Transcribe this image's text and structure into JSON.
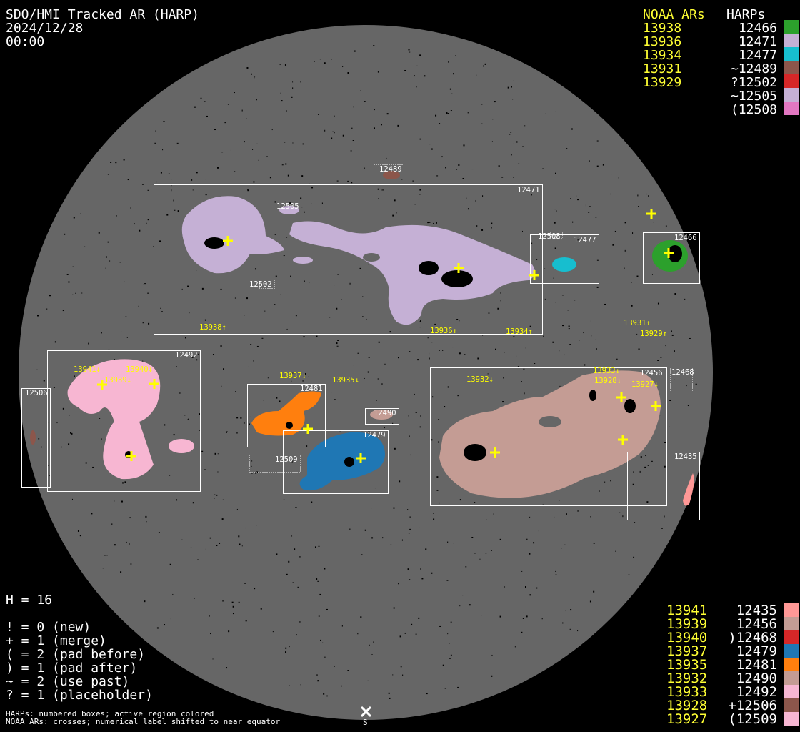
{
  "header": {
    "title": "SDO/HMI Tracked AR (HARP)",
    "date": "2024/12/28",
    "time": "00:00"
  },
  "top_legend": {
    "noaa_header": "NOAA ARs",
    "harp_header": "HARPs",
    "noaa": [
      "13938",
      "13936",
      "13934",
      "13931",
      "13929"
    ],
    "harps": [
      {
        "label": "12466",
        "color": "#2ca02c"
      },
      {
        "label": "12471",
        "color": "#c5b0d5"
      },
      {
        "label": "12477",
        "color": "#17becf"
      },
      {
        "label": "~12489",
        "color": "#8c564b"
      },
      {
        "label": "?12502",
        "color": "#d62728"
      },
      {
        "label": "~12505",
        "color": "#c5b0d5"
      },
      {
        "label": "(12508",
        "color": "#e377c2"
      }
    ]
  },
  "bottom_legend": {
    "noaa": [
      "13941",
      "13939",
      "13940",
      "13937",
      "13935",
      "13932",
      "13933",
      "13928",
      "13927"
    ],
    "harps": [
      {
        "label": "12435",
        "color": "#ff9896"
      },
      {
        "label": "12456",
        "color": "#c49c94"
      },
      {
        "label": ")12468",
        "color": "#d62728"
      },
      {
        "label": "12479",
        "color": "#1f77b4"
      },
      {
        "label": "12481",
        "color": "#ff7f0e"
      },
      {
        "label": "12490",
        "color": "#c49c94"
      },
      {
        "label": "12492",
        "color": "#f7b6d2"
      },
      {
        "label": "+12506",
        "color": "#8c564b"
      },
      {
        "label": "(12509",
        "color": "#f7b6d2"
      }
    ]
  },
  "stats": {
    "h_count": "H = 16",
    "codes": [
      "! = 0 (new)",
      "+ = 1 (merge)",
      "( = 2 (pad before)",
      ") = 1 (pad after)",
      "~ = 2 (use past)",
      "? = 1 (placeholder)"
    ]
  },
  "footer": {
    "line1": "HARPs: numbered boxes; active region colored",
    "line2": "NOAA ARs: crosses; numerical label shifted to near equator",
    "south_marker": "S"
  },
  "disk": {
    "color": "#666666"
  },
  "harp_boxes": {
    "b12471": "12471",
    "b12505": "12505",
    "b12489": "12489",
    "b12502": "12502",
    "b12508": "12508",
    "b12477": "12477",
    "b12466": "12466",
    "b12492": "12492",
    "b12506": "12506",
    "b12481": "12481",
    "b12479": "12479",
    "b12509": "12509",
    "b12490": "12490",
    "b12456": "12456",
    "b12468": "12468",
    "b12435": "12435"
  },
  "noaa_labels": {
    "n13938": "13938↑",
    "n13936": "13936↑",
    "n13934": "13934↑",
    "n13931": "13931↑",
    "n13929": "13929↑",
    "n13941": "13941↓",
    "n13939": "13939↓",
    "n13940": "13940↓",
    "n13937": "13937↓",
    "n13935": "13935↓",
    "n13932": "13932↓",
    "n13933": "13933↓",
    "n13928": "13928↓",
    "n13927": "13927↓"
  }
}
